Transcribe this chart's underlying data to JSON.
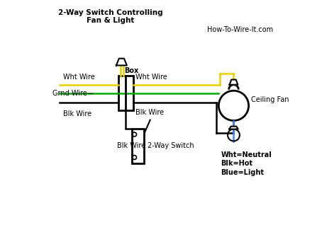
{
  "title": "2-Way Switch Controlling\nFan & Light",
  "watermark": "How-To-Wire-It.com",
  "bg_color": "#ffffff",
  "wire_yellow": "#e8d000",
  "wire_green": "#00aa00",
  "wire_black": "#000000",
  "wire_blue": "#4488ff",
  "text_color": "#000000",
  "labels": {
    "wht_wire_left": "Wht Wire",
    "grnd_wire": "Grnd Wire",
    "blk_wire_left": "Blk Wire",
    "blk_wire_bottom": "Blk Wire",
    "wht_wire_right": "Wht Wire",
    "blk_wire_right": "Blk Wire",
    "box": "Box",
    "switch": "2-Way Switch",
    "ceiling_fan": "Ceiling Fan",
    "legend1": "Wht=Neutral",
    "legend2": "Blk=Hot",
    "legend3": "Blue=Light"
  }
}
